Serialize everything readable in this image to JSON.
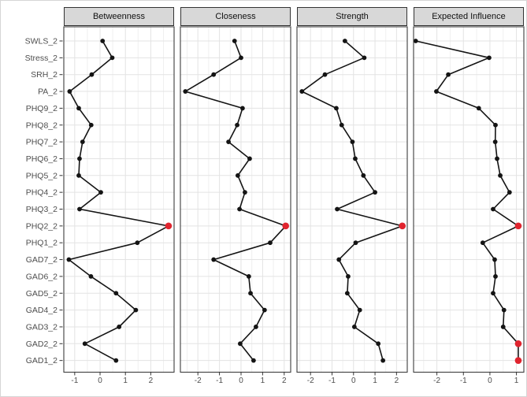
{
  "chart_data": {
    "type": "line",
    "subtype": "faceted-dot-line-centrality-plot",
    "title": "",
    "xlabel": "",
    "ylabel": "",
    "grid": true,
    "legend_position": "none",
    "categories_top_to_bottom": [
      "SWLS_2",
      "Stress_2",
      "SRH_2",
      "PA_2",
      "PHQ9_2",
      "PHQ8_2",
      "PHQ7_2",
      "PHQ6_2",
      "PHQ5_2",
      "PHQ4_2",
      "PHQ3_2",
      "PHQ2_2",
      "PHQ1_2",
      "GAD7_2",
      "GAD6_2",
      "GAD5_2",
      "GAD4_2",
      "GAD3_2",
      "GAD2_2",
      "GAD1_2"
    ],
    "panels": [
      {
        "title": "Betweenness",
        "xlim": [
          -1.43,
          2.92
        ],
        "ticks": [
          -1,
          0,
          1,
          2
        ],
        "values": [
          0.1,
          0.48,
          -0.33,
          -1.2,
          -0.84,
          -0.35,
          -0.69,
          -0.81,
          -0.84,
          0.03,
          -0.81,
          2.7,
          1.47,
          -1.23,
          -0.36,
          0.63,
          1.41,
          0.75,
          -0.6,
          0.63
        ],
        "highlight_indices": [
          11
        ]
      },
      {
        "title": "Closeness",
        "xlim": [
          -2.81,
          2.3
        ],
        "ticks": [
          -2,
          -1,
          0,
          1,
          2
        ],
        "values": [
          -0.3,
          0.0,
          -1.27,
          -2.58,
          0.07,
          -0.18,
          -0.58,
          0.4,
          -0.15,
          0.18,
          -0.07,
          2.07,
          1.35,
          -1.27,
          0.36,
          0.44,
          1.09,
          0.69,
          -0.04,
          0.58
        ],
        "highlight_indices": [
          11
        ]
      },
      {
        "title": "Strength",
        "xlim": [
          -2.63,
          2.5
        ],
        "ticks": [
          -2,
          -1,
          0,
          1,
          2
        ],
        "values": [
          -0.4,
          0.5,
          -1.33,
          -2.4,
          -0.8,
          -0.55,
          -0.05,
          0.08,
          0.46,
          1.0,
          -0.76,
          2.27,
          0.1,
          -0.68,
          -0.25,
          -0.29,
          0.29,
          0.04,
          1.15,
          1.37
        ],
        "highlight_indices": [
          11
        ]
      },
      {
        "title": "Expected Influence",
        "xlim": [
          -2.88,
          1.28
        ],
        "ticks": [
          -2,
          -1,
          0,
          1
        ],
        "values": [
          -2.8,
          -0.03,
          -1.57,
          -2.02,
          -0.42,
          0.21,
          0.2,
          0.27,
          0.39,
          0.74,
          0.12,
          1.07,
          -0.27,
          0.18,
          0.21,
          0.12,
          0.53,
          0.5,
          1.07,
          1.07
        ],
        "highlight_indices": [
          11,
          18,
          19
        ]
      }
    ],
    "colors": {
      "line": "#141414",
      "point": "#141414",
      "highlight_point": "#e0242e",
      "grid_major": "#e3e3e3",
      "grid_minor": "#f0f0f0",
      "panel_border": "#3d3d3d",
      "strip_fill": "#d8d8d8",
      "strip_border": "#333333",
      "axis_text": "#4d4d4d",
      "tick_mark": "#333333",
      "panel_background": "#ffffff"
    }
  }
}
